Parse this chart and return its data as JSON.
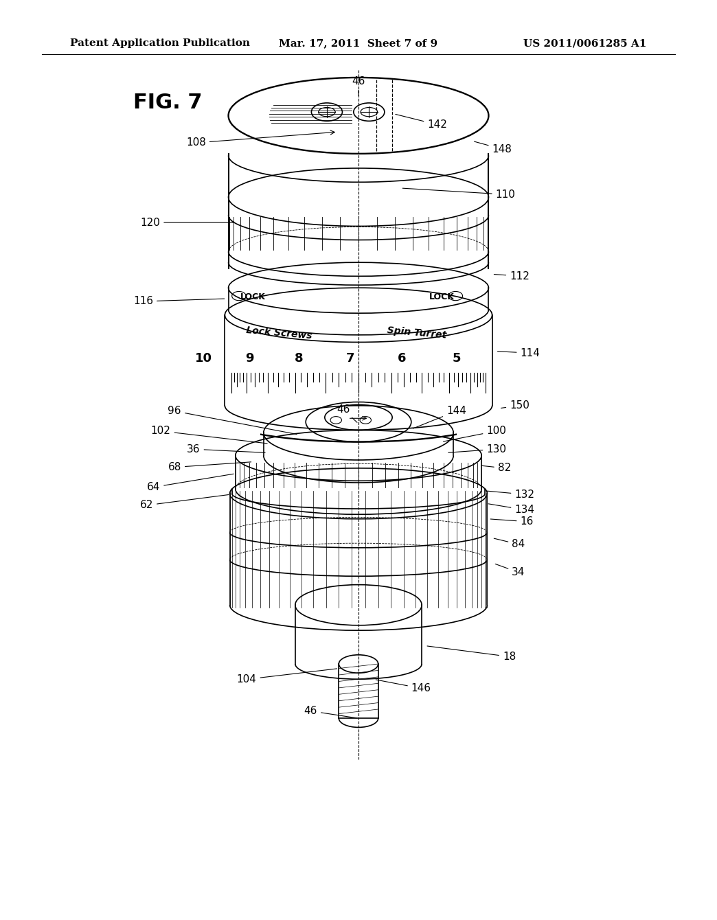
{
  "background_color": "#ffffff",
  "header_left": "Patent Application Publication",
  "header_center": "Mar. 17, 2011  Sheet 7 of 9",
  "header_right": "US 2011/0061285 A1",
  "fig_label": "FIG. 7",
  "header_fontsize": 11,
  "fig_label_fontsize": 22,
  "annotation_fontsize": 11,
  "drawing_color": "#000000",
  "line_width": 1.2
}
